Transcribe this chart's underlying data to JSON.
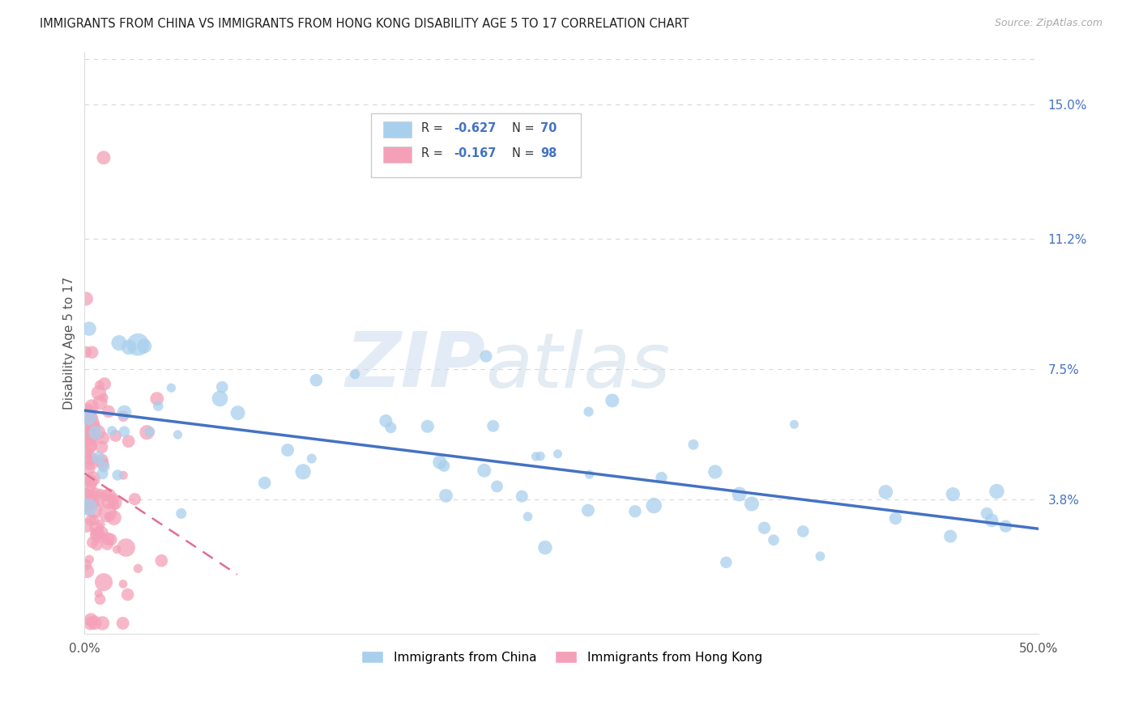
{
  "title": "IMMIGRANTS FROM CHINA VS IMMIGRANTS FROM HONG KONG DISABILITY AGE 5 TO 17 CORRELATION CHART",
  "source": "Source: ZipAtlas.com",
  "ylabel": "Disability Age 5 to 17",
  "ytick_labels": [
    "15.0%",
    "11.2%",
    "7.5%",
    "3.8%"
  ],
  "ytick_values": [
    0.15,
    0.112,
    0.075,
    0.038
  ],
  "xlim": [
    0.0,
    0.5
  ],
  "ylim": [
    0.0,
    0.165
  ],
  "china_color": "#a8d0ed",
  "hk_color": "#f4a0b8",
  "trendline_china_color": "#4472c4",
  "trendline_hk_color": "#e07090",
  "china_R": -0.627,
  "china_N": 70,
  "hk_R": -0.167,
  "hk_N": 98,
  "watermark_zip": "ZIP",
  "watermark_atlas": "atlas",
  "grid_color": "#d8d8d8",
  "legend_border_color": "#cccccc",
  "title_color": "#222222",
  "source_color": "#aaaaaa",
  "ylabel_color": "#555555",
  "tick_color": "#555555",
  "right_tick_color": "#4472c4"
}
